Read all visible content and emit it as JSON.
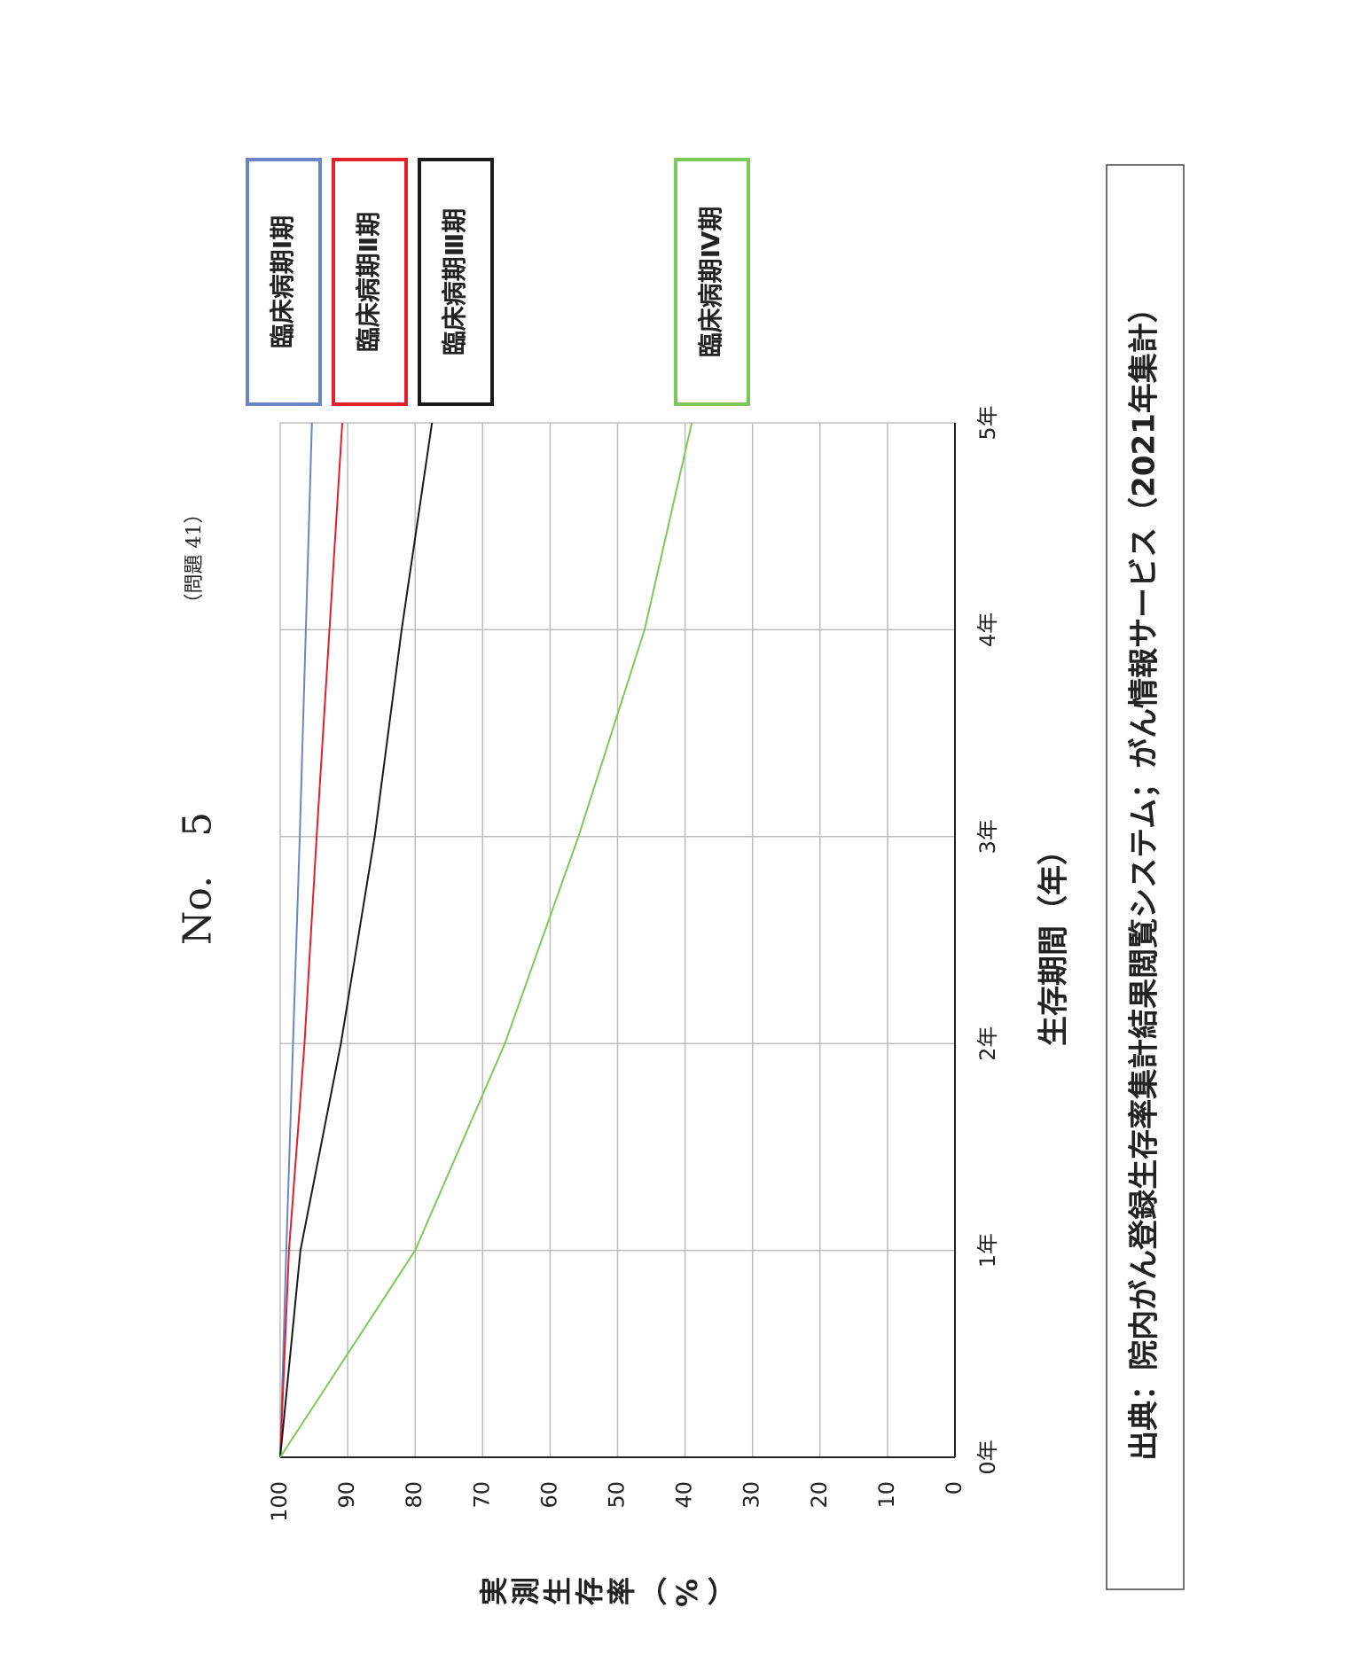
{
  "chart_data": {
    "type": "line",
    "title": "No.　5",
    "subtitle": "（問題 41）",
    "x_label": "生存期間（年）",
    "y_label": "実測生存率（%）",
    "source": "出典：院内がん登録生存率集計結果閲覧システム；がん情報サービス（2021年集計）",
    "categories": [
      "0年",
      "1年",
      "2年",
      "3年",
      "4年",
      "5年"
    ],
    "series": [
      {
        "name": "臨床病期Ⅰ期",
        "color": "#6a86c8",
        "values": [
          100,
          99.1,
          98.1,
          97.1,
          96.2,
          95.3
        ]
      },
      {
        "name": "臨床病期Ⅱ期",
        "color": "#e0202a",
        "values": [
          100,
          98.7,
          96.4,
          94.6,
          92.7,
          90.8
        ]
      },
      {
        "name": "臨床病期Ⅲ期",
        "color": "#1a1a1a",
        "values": [
          100,
          97,
          91,
          86,
          82,
          77.5
        ]
      },
      {
        "name": "臨床病期Ⅳ期",
        "color": "#7cc95a",
        "values": [
          100,
          80,
          66.7,
          55.8,
          46,
          39
        ]
      }
    ],
    "ylim": [
      0,
      100
    ],
    "yticks": [
      0,
      10,
      20,
      30,
      40,
      50,
      60,
      70,
      80,
      90,
      100
    ],
    "grid": true
  }
}
